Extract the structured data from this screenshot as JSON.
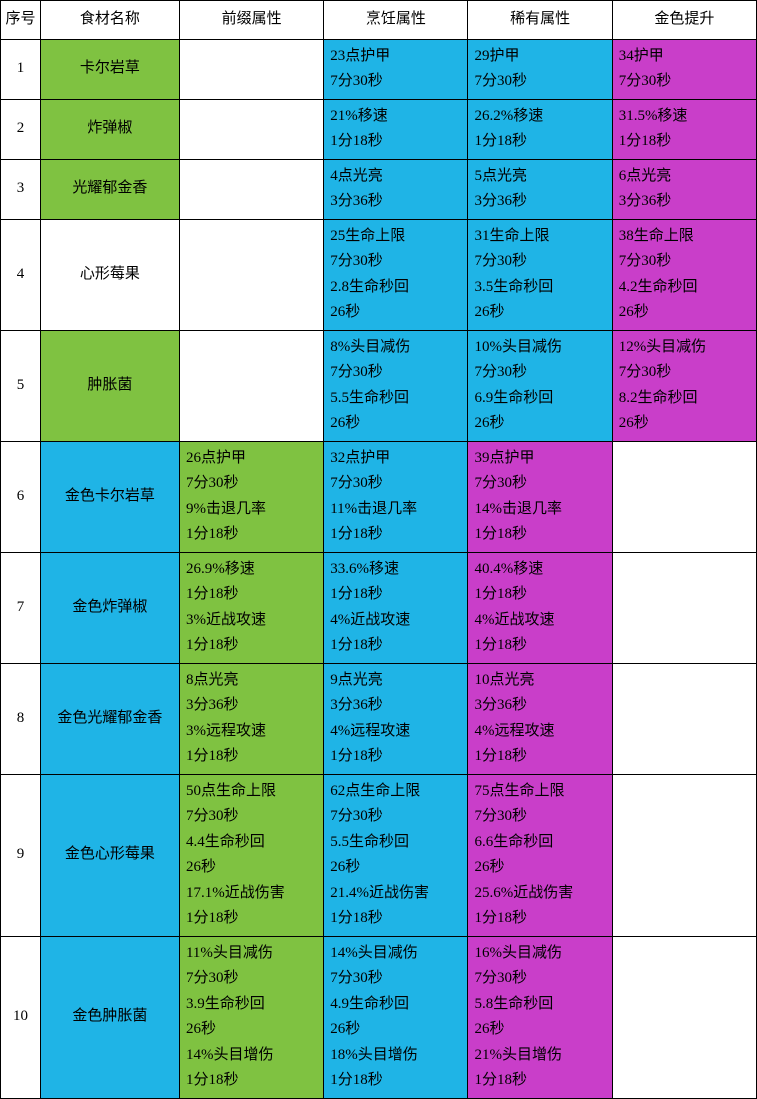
{
  "colors": {
    "green": "#7fc241",
    "blue": "#1fb4e6",
    "pink": "#c93ec9",
    "white": "#ffffff",
    "border": "#000000"
  },
  "headers": [
    "序号",
    "食材名称",
    "前缀属性",
    "烹饪属性",
    "稀有属性",
    "金色提升"
  ],
  "rows": [
    {
      "idx": "1",
      "name": "卡尔岩草",
      "name_color": "green",
      "prefix": {
        "lines": [],
        "color": "white"
      },
      "cook": {
        "lines": [
          "23点护甲",
          "7分30秒"
        ],
        "color": "blue"
      },
      "rare": {
        "lines": [
          "29护甲",
          "7分30秒"
        ],
        "color": "blue"
      },
      "gold": {
        "lines": [
          "34护甲",
          "7分30秒"
        ],
        "color": "pink"
      }
    },
    {
      "idx": "2",
      "name": "炸弹椒",
      "name_color": "green",
      "prefix": {
        "lines": [],
        "color": "white"
      },
      "cook": {
        "lines": [
          "21%移速",
          "1分18秒"
        ],
        "color": "blue"
      },
      "rare": {
        "lines": [
          "26.2%移速",
          "1分18秒"
        ],
        "color": "blue"
      },
      "gold": {
        "lines": [
          "31.5%移速",
          "1分18秒"
        ],
        "color": "pink"
      }
    },
    {
      "idx": "3",
      "name": "光耀郁金香",
      "name_color": "green",
      "prefix": {
        "lines": [],
        "color": "white"
      },
      "cook": {
        "lines": [
          "4点光亮",
          "3分36秒"
        ],
        "color": "blue"
      },
      "rare": {
        "lines": [
          "5点光亮",
          "3分36秒"
        ],
        "color": "blue"
      },
      "gold": {
        "lines": [
          "6点光亮",
          "3分36秒"
        ],
        "color": "pink"
      }
    },
    {
      "idx": "4",
      "name": "心形莓果",
      "name_color": "white",
      "prefix": {
        "lines": [],
        "color": "white"
      },
      "cook": {
        "lines": [
          "25生命上限",
          "7分30秒",
          "2.8生命秒回",
          "26秒"
        ],
        "color": "blue"
      },
      "rare": {
        "lines": [
          "31生命上限",
          "7分30秒",
          "3.5生命秒回",
          "26秒"
        ],
        "color": "blue"
      },
      "gold": {
        "lines": [
          "38生命上限",
          "7分30秒",
          "4.2生命秒回",
          "26秒"
        ],
        "color": "pink"
      }
    },
    {
      "idx": "5",
      "name": "肿胀菌",
      "name_color": "green",
      "prefix": {
        "lines": [],
        "color": "white"
      },
      "cook": {
        "lines": [
          "8%头目减伤",
          "7分30秒",
          "5.5生命秒回",
          "26秒"
        ],
        "color": "blue"
      },
      "rare": {
        "lines": [
          "10%头目减伤",
          "7分30秒",
          "6.9生命秒回",
          "26秒"
        ],
        "color": "blue"
      },
      "gold": {
        "lines": [
          "12%头目减伤",
          "7分30秒",
          "8.2生命秒回",
          "26秒"
        ],
        "color": "pink"
      }
    },
    {
      "idx": "6",
      "name": "金色卡尔岩草",
      "name_color": "blue",
      "prefix": {
        "lines": [
          "26点护甲",
          "7分30秒",
          "9%击退几率",
          "1分18秒"
        ],
        "color": "green"
      },
      "cook": {
        "lines": [
          "32点护甲",
          "7分30秒",
          "11%击退几率",
          "1分18秒"
        ],
        "color": "blue"
      },
      "rare": {
        "lines": [
          "39点护甲",
          "7分30秒",
          "14%击退几率",
          "1分18秒"
        ],
        "color": "pink"
      },
      "gold": {
        "lines": [],
        "color": "white"
      }
    },
    {
      "idx": "7",
      "name": "金色炸弹椒",
      "name_color": "blue",
      "prefix": {
        "lines": [
          "26.9%移速",
          "1分18秒",
          "3%近战攻速",
          "1分18秒"
        ],
        "color": "green"
      },
      "cook": {
        "lines": [
          "33.6%移速",
          "1分18秒",
          "4%近战攻速",
          "1分18秒"
        ],
        "color": "blue"
      },
      "rare": {
        "lines": [
          "40.4%移速",
          "1分18秒",
          "4%近战攻速",
          "1分18秒"
        ],
        "color": "pink"
      },
      "gold": {
        "lines": [],
        "color": "white"
      }
    },
    {
      "idx": "8",
      "name": "金色光耀郁金香",
      "name_color": "blue",
      "prefix": {
        "lines": [
          "8点光亮",
          "3分36秒",
          "3%远程攻速",
          "1分18秒"
        ],
        "color": "green"
      },
      "cook": {
        "lines": [
          "9点光亮",
          "3分36秒",
          "4%远程攻速",
          "1分18秒"
        ],
        "color": "blue"
      },
      "rare": {
        "lines": [
          "10点光亮",
          "3分36秒",
          "4%远程攻速",
          "1分18秒"
        ],
        "color": "pink"
      },
      "gold": {
        "lines": [],
        "color": "white"
      }
    },
    {
      "idx": "9",
      "name": "金色心形莓果",
      "name_color": "blue",
      "prefix": {
        "lines": [
          "50点生命上限",
          "7分30秒",
          "4.4生命秒回",
          "26秒",
          "17.1%近战伤害",
          "1分18秒"
        ],
        "color": "green"
      },
      "cook": {
        "lines": [
          "62点生命上限",
          "7分30秒",
          "5.5生命秒回",
          "26秒",
          "21.4%近战伤害",
          "1分18秒"
        ],
        "color": "blue"
      },
      "rare": {
        "lines": [
          "75点生命上限",
          "7分30秒",
          "6.6生命秒回",
          "26秒",
          "25.6%近战伤害",
          "1分18秒"
        ],
        "color": "pink"
      },
      "gold": {
        "lines": [],
        "color": "white"
      }
    },
    {
      "idx": "10",
      "name": "金色肿胀菌",
      "name_color": "blue",
      "prefix": {
        "lines": [
          "11%头目减伤",
          "7分30秒",
          "3.9生命秒回",
          "26秒",
          "14%头目增伤",
          "1分18秒"
        ],
        "color": "green"
      },
      "cook": {
        "lines": [
          "14%头目减伤",
          "7分30秒",
          "4.9生命秒回",
          "26秒",
          "18%头目增伤",
          "1分18秒"
        ],
        "color": "blue"
      },
      "rare": {
        "lines": [
          "16%头目减伤",
          "7分30秒",
          "5.8生命秒回",
          "26秒",
          "21%头目增伤",
          "1分18秒"
        ],
        "color": "pink"
      },
      "gold": {
        "lines": [],
        "color": "white"
      }
    }
  ]
}
